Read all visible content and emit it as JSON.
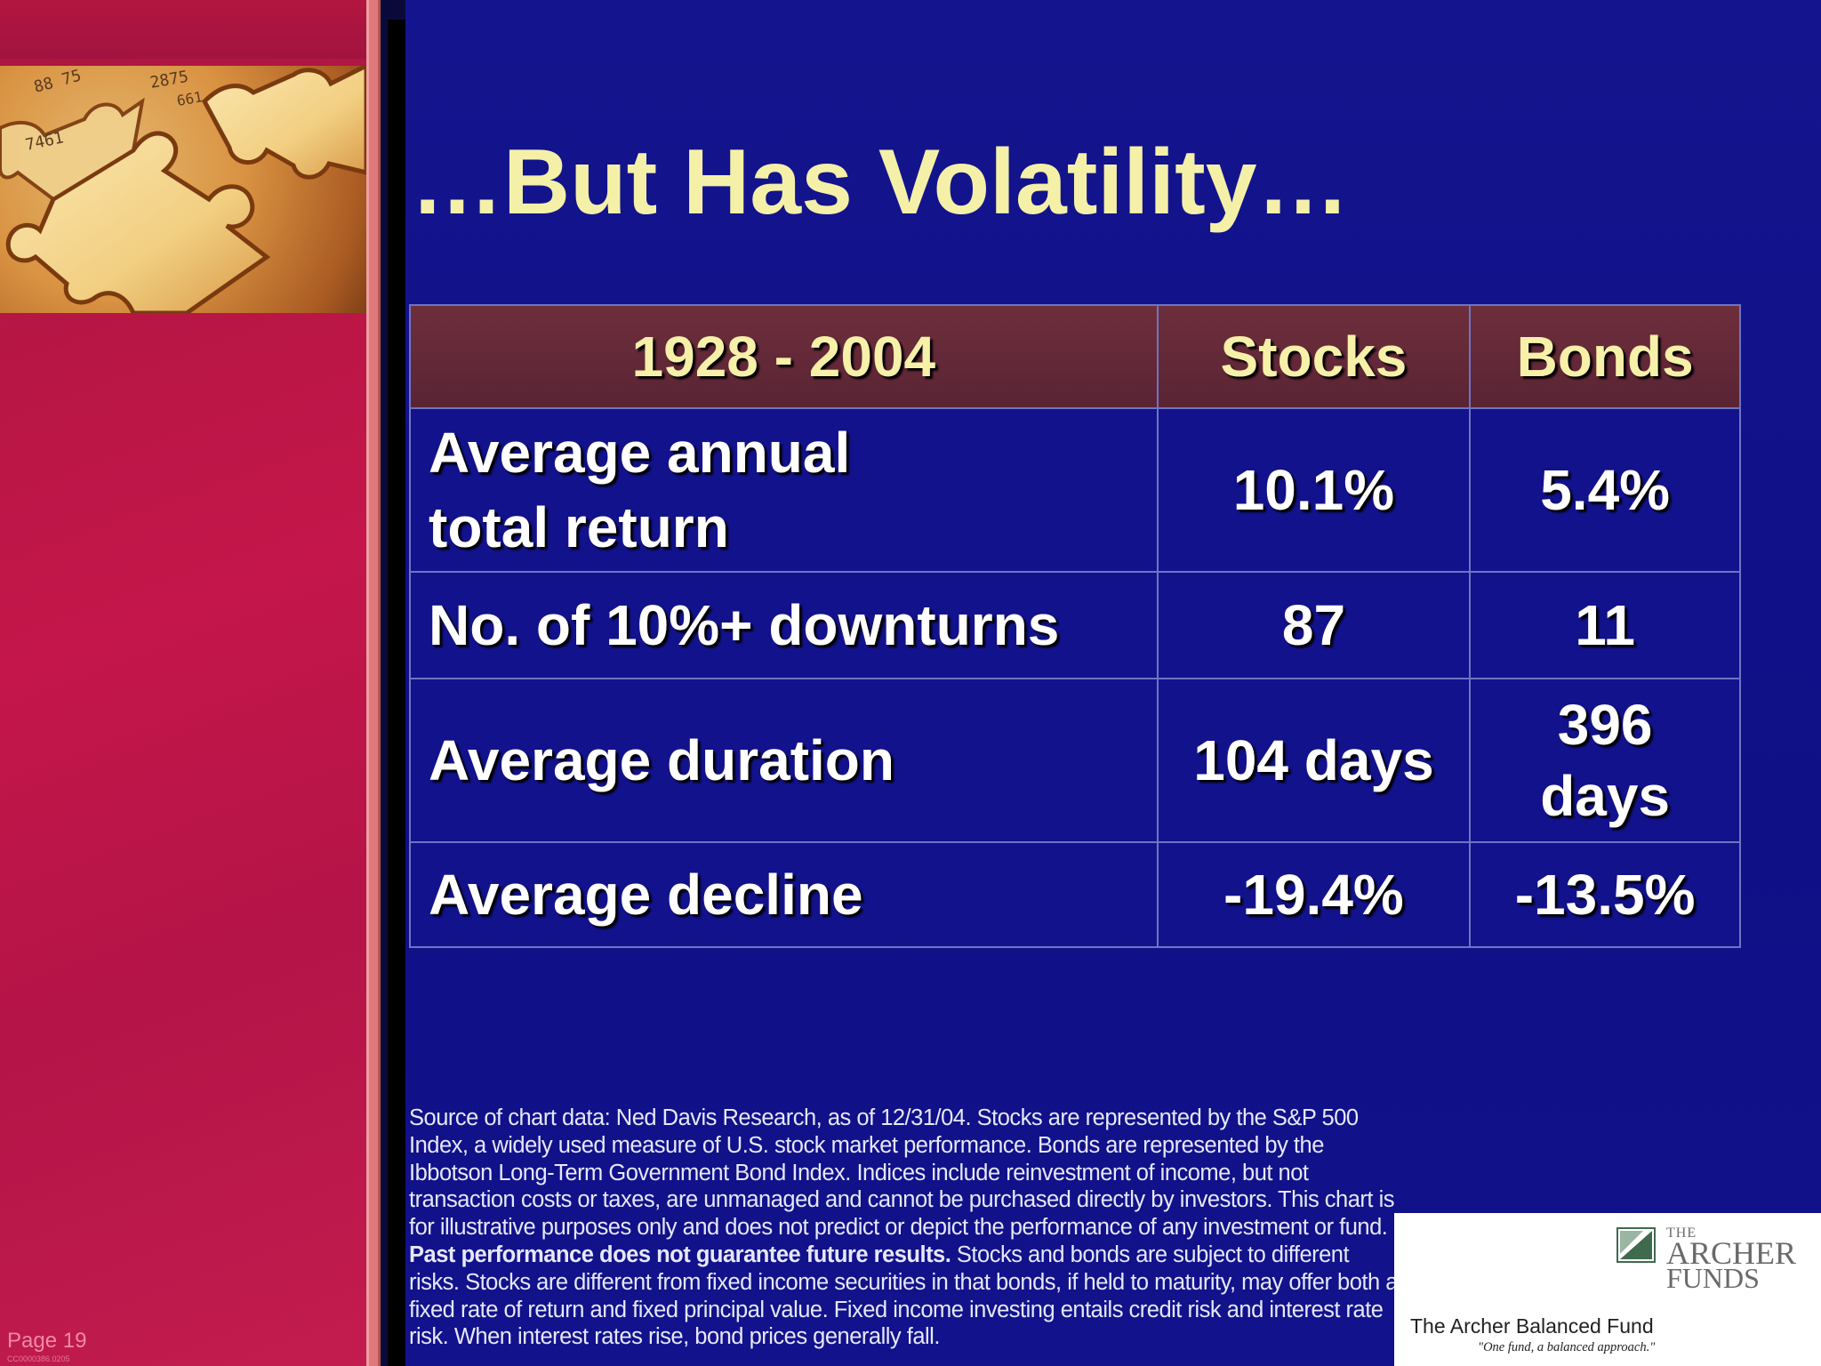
{
  "slide": {
    "title": "…But Has Volatility…",
    "page_label": "Page 19",
    "code": "CC0000386.0205"
  },
  "table": {
    "headers": [
      "1928 - 2004",
      "Stocks",
      "Bonds"
    ],
    "rows": [
      {
        "label_line1": "Average annual",
        "label_line2": "total return",
        "stocks": "10.1%",
        "bonds": "5.4%"
      },
      {
        "label": "No. of 10%+ downturns",
        "stocks": "87",
        "bonds": "11"
      },
      {
        "label": "Average duration",
        "stocks": "104 days",
        "bonds_line1": "396",
        "bonds_line2": "days"
      },
      {
        "label": "Average decline",
        "stocks": "-19.4%",
        "bonds": "-13.5%"
      }
    ]
  },
  "footnote": {
    "part1": "Source of chart data: Ned Davis Research, as of 12/31/04. Stocks are represented by the S&P 500 Index, a widely used measure of U.S. stock market performance. Bonds are represented by the Ibbotson Long-Term Government Bond Index. Indices include reinvestment of income, but not transaction costs or taxes, are unmanaged and cannot be purchased directly by investors. This chart is for illustrative purposes only and does not predict or depict the performance of any investment or fund.",
    "bold": "Past performance does not guarantee future results.",
    "part2": "Stocks and bonds are subject to different risks. Stocks are different from fixed income securities in that bonds, if held to maturity, may offer both a fixed rate of return and fixed principal value. Fixed income investing entails credit risk and interest rate risk. When interest rates rise, bond prices generally fall."
  },
  "logo": {
    "the": "THE",
    "archer": "ARCHER",
    "funds": "FUNDS",
    "fund_name": "The Archer Balanced Fund",
    "tagline": "\"One fund, a balanced approach.\""
  },
  "colors": {
    "background": "#10108a",
    "title": "#f4f0a8",
    "left_panel": "#c4164a",
    "header_cell": "#6e2e3c"
  }
}
